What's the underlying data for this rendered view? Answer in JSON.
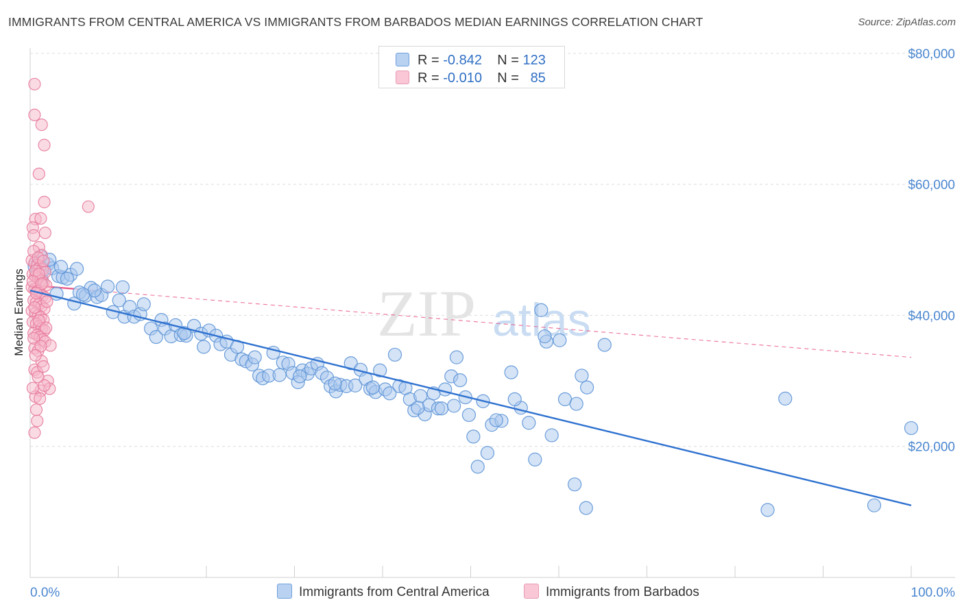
{
  "header": {
    "title": "IMMIGRANTS FROM CENTRAL AMERICA VS IMMIGRANTS FROM BARBADOS MEDIAN EARNINGS CORRELATION CHART",
    "source": "Source: ZipAtlas.com"
  },
  "watermark": {
    "zip": "ZIP",
    "atlas": "atlas"
  },
  "legend": {
    "row1": {
      "r_label": "R =",
      "r_value": "-0.842",
      "n_label": "N =",
      "n_value": "123"
    },
    "row2": {
      "r_label": "R =",
      "r_value": "-0.010",
      "n_label": "N =",
      "n_value": "85"
    }
  },
  "colors": {
    "blue_fill": "#aac8ee",
    "blue_stroke": "#5b92d6",
    "blue_line": "#2f72d0",
    "pink_fill": "#f6b7c9",
    "pink_stroke": "#e77a9c",
    "pink_line": "#e85a88",
    "tick_label": "#4a86d0",
    "grid": "#dcdcdc"
  },
  "chart_data": {
    "type": "scatter",
    "title": "IMMIGRANTS FROM CENTRAL AMERICA VS IMMIGRANTS FROM BARBADOS MEDIAN EARNINGS CORRELATION CHART",
    "xlabel": "",
    "ylabel": "Median Earnings",
    "xlim": [
      0,
      100
    ],
    "ylim": [
      0,
      82000
    ],
    "x_tick_labels": [
      "0.0%",
      "100.0%"
    ],
    "y_ticks": [
      20000,
      40000,
      60000,
      80000
    ],
    "y_tick_labels": [
      "$20,000",
      "$40,000",
      "$60,000",
      "$80,000"
    ],
    "grid": "horizontal dashed",
    "legend_position": "top-center",
    "series": [
      {
        "name": "Immigrants from Central America",
        "color": "#5b92d6",
        "trend": {
          "x": [
            0,
            100
          ],
          "y": [
            43800,
            11000
          ]
        },
        "points": [
          [
            0.5,
            47500
          ],
          [
            0.8,
            46500
          ],
          [
            1.0,
            48000
          ],
          [
            1.3,
            45500
          ],
          [
            1.6,
            47000
          ],
          [
            2.0,
            47800
          ],
          [
            2.5,
            47200
          ],
          [
            3.2,
            46000
          ],
          [
            3.7,
            45800
          ],
          [
            4.6,
            46200
          ],
          [
            5.3,
            47100
          ],
          [
            5.6,
            43500
          ],
          [
            6.3,
            43000
          ],
          [
            6.9,
            44200
          ],
          [
            7.6,
            42800
          ],
          [
            8.1,
            43100
          ],
          [
            8.8,
            44400
          ],
          [
            9.4,
            40500
          ],
          [
            10.1,
            42300
          ],
          [
            10.7,
            39800
          ],
          [
            11.3,
            41300
          ],
          [
            11.8,
            39800
          ],
          [
            12.5,
            40200
          ],
          [
            12.9,
            41700
          ],
          [
            13.7,
            38000
          ],
          [
            14.3,
            36700
          ],
          [
            14.9,
            39300
          ],
          [
            15.3,
            38000
          ],
          [
            16.0,
            36800
          ],
          [
            16.5,
            38500
          ],
          [
            17.1,
            37000
          ],
          [
            17.7,
            36900
          ],
          [
            18.6,
            38400
          ],
          [
            19.4,
            37200
          ],
          [
            19.7,
            35200
          ],
          [
            20.3,
            37700
          ],
          [
            21.1,
            36900
          ],
          [
            21.6,
            35600
          ],
          [
            22.3,
            36000
          ],
          [
            22.8,
            34000
          ],
          [
            23.5,
            35200
          ],
          [
            24.0,
            33300
          ],
          [
            24.5,
            33000
          ],
          [
            25.2,
            32500
          ],
          [
            26.0,
            30800
          ],
          [
            26.4,
            30400
          ],
          [
            27.1,
            30800
          ],
          [
            27.6,
            34300
          ],
          [
            28.3,
            30900
          ],
          [
            28.7,
            32800
          ],
          [
            29.3,
            32600
          ],
          [
            29.8,
            31200
          ],
          [
            30.4,
            29800
          ],
          [
            30.9,
            31600
          ],
          [
            31.5,
            31100
          ],
          [
            31.9,
            31900
          ],
          [
            32.6,
            32600
          ],
          [
            33.1,
            31200
          ],
          [
            33.7,
            30500
          ],
          [
            34.1,
            29200
          ],
          [
            34.7,
            28400
          ],
          [
            35.2,
            29400
          ],
          [
            35.9,
            29200
          ],
          [
            36.4,
            32700
          ],
          [
            36.9,
            29300
          ],
          [
            37.5,
            31700
          ],
          [
            38.1,
            30300
          ],
          [
            38.6,
            28800
          ],
          [
            39.2,
            28300
          ],
          [
            39.7,
            31600
          ],
          [
            40.3,
            28700
          ],
          [
            40.8,
            28100
          ],
          [
            41.4,
            34000
          ],
          [
            41.9,
            29200
          ],
          [
            42.6,
            28900
          ],
          [
            43.1,
            27200
          ],
          [
            43.6,
            25500
          ],
          [
            44.3,
            27700
          ],
          [
            44.8,
            24900
          ],
          [
            45.3,
            26300
          ],
          [
            45.8,
            28100
          ],
          [
            46.3,
            25800
          ],
          [
            47.1,
            28700
          ],
          [
            47.8,
            30700
          ],
          [
            48.4,
            33600
          ],
          [
            48.8,
            30100
          ],
          [
            49.4,
            27500
          ],
          [
            49.8,
            24800
          ],
          [
            50.3,
            21500
          ],
          [
            50.8,
            16900
          ],
          [
            51.4,
            26900
          ],
          [
            51.9,
            19000
          ],
          [
            52.4,
            23300
          ],
          [
            53.5,
            23900
          ],
          [
            54.6,
            31300
          ],
          [
            55.7,
            25900
          ],
          [
            56.6,
            23600
          ],
          [
            57.3,
            18000
          ],
          [
            58.0,
            40800
          ],
          [
            58.6,
            36000
          ],
          [
            59.2,
            21700
          ],
          [
            60.1,
            36200
          ],
          [
            60.7,
            27200
          ],
          [
            61.8,
            14200
          ],
          [
            62.6,
            30800
          ],
          [
            63.1,
            10600
          ],
          [
            63.2,
            29000
          ],
          [
            65.2,
            35500
          ],
          [
            83.7,
            10300
          ],
          [
            85.7,
            27300
          ],
          [
            95.8,
            11000
          ],
          [
            100.0,
            22800
          ],
          [
            3.0,
            43300
          ],
          [
            5.0,
            41800
          ],
          [
            7.3,
            43800
          ],
          [
            10.5,
            44300
          ],
          [
            17.5,
            37300
          ],
          [
            25.5,
            33600
          ],
          [
            30.6,
            30700
          ],
          [
            34.6,
            29600
          ],
          [
            38.9,
            29000
          ],
          [
            44.0,
            25900
          ],
          [
            46.7,
            25800
          ],
          [
            48.1,
            26200
          ],
          [
            52.9,
            24000
          ],
          [
            55.0,
            27200
          ],
          [
            58.4,
            36800
          ],
          [
            62.0,
            26500
          ],
          [
            1.2,
            49000
          ],
          [
            2.2,
            48500
          ],
          [
            3.5,
            47400
          ],
          [
            4.2,
            45600
          ],
          [
            6.0,
            43200
          ]
        ]
      },
      {
        "name": "Immigrants from Barbados",
        "color": "#e77a9c",
        "trend": {
          "x": [
            0,
            100
          ],
          "y": [
            44600,
            33600
          ]
        },
        "points": [
          [
            0.5,
            75300
          ],
          [
            0.5,
            70600
          ],
          [
            1.3,
            69100
          ],
          [
            1.6,
            66000
          ],
          [
            1.0,
            61600
          ],
          [
            1.6,
            57300
          ],
          [
            6.6,
            56600
          ],
          [
            0.6,
            54700
          ],
          [
            1.2,
            54800
          ],
          [
            0.3,
            53400
          ],
          [
            1.7,
            52600
          ],
          [
            0.4,
            52200
          ],
          [
            1.0,
            50400
          ],
          [
            1.3,
            49200
          ],
          [
            0.2,
            48400
          ],
          [
            0.5,
            48000
          ],
          [
            0.8,
            47700
          ],
          [
            1.1,
            47400
          ],
          [
            1.4,
            47000
          ],
          [
            1.7,
            46600
          ],
          [
            0.3,
            46300
          ],
          [
            0.6,
            46000
          ],
          [
            0.9,
            45700
          ],
          [
            1.2,
            45300
          ],
          [
            1.5,
            45000
          ],
          [
            1.8,
            44600
          ],
          [
            0.2,
            44300
          ],
          [
            0.5,
            44000
          ],
          [
            0.8,
            43700
          ],
          [
            1.1,
            43400
          ],
          [
            1.4,
            43000
          ],
          [
            1.7,
            42700
          ],
          [
            0.4,
            42300
          ],
          [
            0.7,
            42000
          ],
          [
            1.0,
            41700
          ],
          [
            1.3,
            41400
          ],
          [
            1.6,
            41000
          ],
          [
            0.2,
            40700
          ],
          [
            0.6,
            40300
          ],
          [
            0.9,
            40000
          ],
          [
            1.2,
            39700
          ],
          [
            1.5,
            39300
          ],
          [
            0.3,
            39000
          ],
          [
            0.7,
            38700
          ],
          [
            1.0,
            38300
          ],
          [
            1.3,
            38000
          ],
          [
            1.6,
            37700
          ],
          [
            0.4,
            37300
          ],
          [
            0.8,
            37000
          ],
          [
            1.1,
            36700
          ],
          [
            1.4,
            36300
          ],
          [
            1.7,
            36000
          ],
          [
            2.3,
            35400
          ],
          [
            0.5,
            35000
          ],
          [
            0.9,
            34600
          ],
          [
            1.3,
            33000
          ],
          [
            0.5,
            31700
          ],
          [
            0.8,
            31300
          ],
          [
            2.0,
            30000
          ],
          [
            1.2,
            28500
          ],
          [
            2.2,
            28800
          ],
          [
            0.6,
            27600
          ],
          [
            1.6,
            29300
          ],
          [
            0.8,
            23900
          ],
          [
            0.5,
            22100
          ],
          [
            0.4,
            49800
          ],
          [
            0.9,
            48800
          ],
          [
            1.5,
            48300
          ],
          [
            0.6,
            46800
          ],
          [
            1.0,
            46300
          ],
          [
            0.3,
            45200
          ],
          [
            1.3,
            44800
          ],
          [
            0.7,
            43400
          ],
          [
            1.9,
            42100
          ],
          [
            0.5,
            41200
          ],
          [
            1.0,
            39200
          ],
          [
            1.8,
            38100
          ],
          [
            0.4,
            36500
          ],
          [
            1.2,
            35300
          ],
          [
            0.6,
            33900
          ],
          [
            1.5,
            32200
          ],
          [
            0.9,
            30600
          ],
          [
            0.3,
            28900
          ],
          [
            1.1,
            27300
          ],
          [
            0.7,
            25600
          ]
        ]
      }
    ]
  }
}
